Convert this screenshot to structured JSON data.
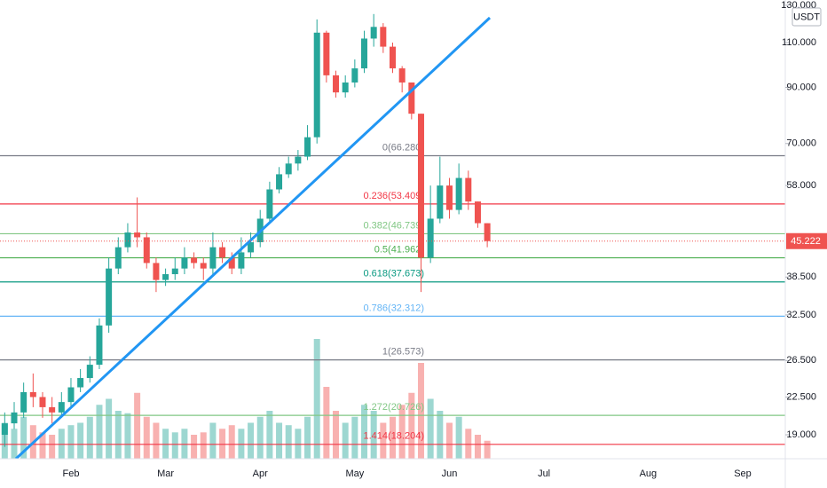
{
  "chart_data": {
    "type": "candlestick",
    "currency": "USDT",
    "log_scale": true,
    "ylim": [
      17.07,
      133.1
    ],
    "yticks": [
      {
        "value": 130,
        "label": "130.000"
      },
      {
        "value": 110,
        "label": "110.000"
      },
      {
        "value": 90,
        "label": "90.000"
      },
      {
        "value": 70,
        "label": "70.000"
      },
      {
        "value": 58,
        "label": "58.000"
      },
      {
        "value": 38.5,
        "label": "38.500"
      },
      {
        "value": 32.5,
        "label": "32.500"
      },
      {
        "value": 26.5,
        "label": "26.500"
      },
      {
        "value": 22.5,
        "label": "22.500"
      },
      {
        "value": 19,
        "label": "19.000"
      }
    ],
    "categories": [
      null,
      null,
      null,
      null,
      null,
      null,
      null,
      "Feb",
      null,
      null,
      null,
      null,
      null,
      null,
      null,
      null,
      null,
      "Mar",
      null,
      null,
      null,
      null,
      null,
      null,
      null,
      null,
      null,
      "Apr",
      null,
      null,
      null,
      null,
      null,
      null,
      null,
      null,
      null,
      "May",
      null,
      null,
      null,
      null,
      null,
      null,
      null,
      null,
      null,
      "Jun",
      null,
      null,
      null,
      null,
      null,
      null,
      null,
      null,
      null,
      "Jul",
      null,
      null,
      null,
      null,
      null,
      null,
      null,
      null,
      null,
      null,
      "Aug",
      null,
      null,
      null,
      null,
      null,
      null,
      null,
      null,
      null,
      "Sep",
      null,
      null,
      null,
      null
    ],
    "open": [
      19,
      20,
      21,
      23,
      22.5,
      21.5,
      21,
      22,
      23.5,
      24.5,
      26,
      31,
      40,
      44,
      47,
      46,
      41,
      38,
      39,
      40,
      42,
      41,
      40,
      44,
      42,
      40,
      43,
      45,
      50,
      57,
      61,
      64,
      66,
      72,
      115,
      95,
      88,
      92,
      98,
      112,
      118,
      108,
      98,
      92,
      80,
      42,
      50,
      58,
      52,
      60,
      54,
      49,
      null,
      null,
      null,
      null,
      null,
      null,
      null,
      null,
      null,
      null,
      null,
      null,
      null,
      null,
      null,
      null,
      null,
      null,
      null,
      null,
      null,
      null,
      null,
      null,
      null,
      null,
      null,
      null,
      null,
      null,
      null
    ],
    "high": [
      21,
      22,
      24,
      25,
      23,
      22.5,
      23,
      24.5,
      25.5,
      27,
      32,
      42,
      46,
      49,
      55,
      47,
      42,
      40,
      42,
      44,
      43,
      42,
      47,
      45,
      43,
      46,
      47,
      52,
      59,
      63,
      66,
      68,
      76,
      122,
      116,
      97,
      95,
      102,
      116,
      125,
      120,
      110,
      99,
      92,
      80,
      58,
      66,
      60,
      64,
      62,
      54,
      49,
      null,
      null,
      null,
      null,
      null,
      null,
      null,
      null,
      null,
      null,
      null,
      null,
      null,
      null,
      null,
      null,
      null,
      null,
      null,
      null,
      null,
      null,
      null,
      null,
      null,
      null,
      null,
      null,
      null,
      null,
      null
    ],
    "low": [
      18,
      19.5,
      20.5,
      21.5,
      20.5,
      20,
      20.5,
      21.5,
      23,
      24,
      25.5,
      30,
      39,
      43,
      44,
      40,
      36,
      37,
      38,
      39,
      40,
      38,
      39,
      41,
      39,
      39,
      42,
      44,
      49,
      56,
      60,
      62,
      65,
      70,
      92,
      86,
      86,
      90,
      96,
      108,
      105,
      96,
      88,
      78,
      36,
      41,
      49,
      50,
      51,
      52,
      48,
      44,
      null,
      null,
      null,
      null,
      null,
      null,
      null,
      null,
      null,
      null,
      null,
      null,
      null,
      null,
      null,
      null,
      null,
      null,
      null,
      null,
      null,
      null,
      null,
      null,
      null,
      null,
      null,
      null,
      null,
      null,
      null
    ],
    "close": [
      20,
      21,
      23,
      22.5,
      21.5,
      21,
      22,
      23.5,
      24.5,
      26,
      31,
      40,
      44,
      47,
      46,
      41,
      38,
      39,
      40,
      42,
      41,
      40,
      44,
      42,
      40,
      43,
      45,
      50,
      57,
      61,
      64,
      66,
      72,
      115,
      95,
      88,
      92,
      98,
      112,
      118,
      108,
      98,
      92,
      80,
      42,
      50,
      58,
      52,
      60,
      54,
      49,
      45.222,
      null,
      null,
      null,
      null,
      null,
      null,
      null,
      null,
      null,
      null,
      null,
      null,
      null,
      null,
      null,
      null,
      null,
      null,
      null,
      null,
      null,
      null,
      null,
      null,
      null,
      null,
      null,
      null,
      null,
      null,
      null
    ],
    "volume": [
      30,
      25,
      35,
      28,
      22,
      20,
      25,
      28,
      30,
      35,
      45,
      50,
      40,
      38,
      55,
      35,
      30,
      25,
      22,
      25,
      20,
      22,
      30,
      25,
      28,
      25,
      30,
      35,
      40,
      30,
      28,
      25,
      35,
      100,
      60,
      40,
      30,
      35,
      45,
      40,
      30,
      35,
      45,
      55,
      80,
      50,
      40,
      30,
      35,
      25,
      20,
      15,
      null,
      null,
      null,
      null,
      null,
      null,
      null,
      null,
      null,
      null,
      null,
      null,
      null,
      null,
      null,
      null,
      null,
      null,
      null,
      null,
      null,
      null,
      null,
      null,
      null,
      null,
      null,
      null,
      null,
      null,
      null
    ],
    "vlim": [
      0,
      100
    ],
    "up_color": "#26a69a",
    "down_color": "#ef5350",
    "fib_levels": [
      {
        "price": 66.28,
        "label": "0(66.280)",
        "color": "#787b86"
      },
      {
        "price": 53.409,
        "label": "0.236(53.409)",
        "color": "#f23645"
      },
      {
        "price": 46.739,
        "label": "0.382(46.739)",
        "color": "#81c784"
      },
      {
        "price": 41.962,
        "label": "0.5(41.962)",
        "color": "#4caf50"
      },
      {
        "price": 37.673,
        "label": "0.618(37.673)",
        "color": "#089981"
      },
      {
        "price": 32.312,
        "label": "0.786(32.312)",
        "color": "#64b5f6"
      },
      {
        "price": 26.573,
        "label": "1(26.573)",
        "color": "#787b86"
      },
      {
        "price": 20.726,
        "label": "1.272(20.726)",
        "color": "#81c784"
      },
      {
        "price": 18.204,
        "label": "1.414(18.204)",
        "color": "#f23645"
      }
    ]
  }
}
